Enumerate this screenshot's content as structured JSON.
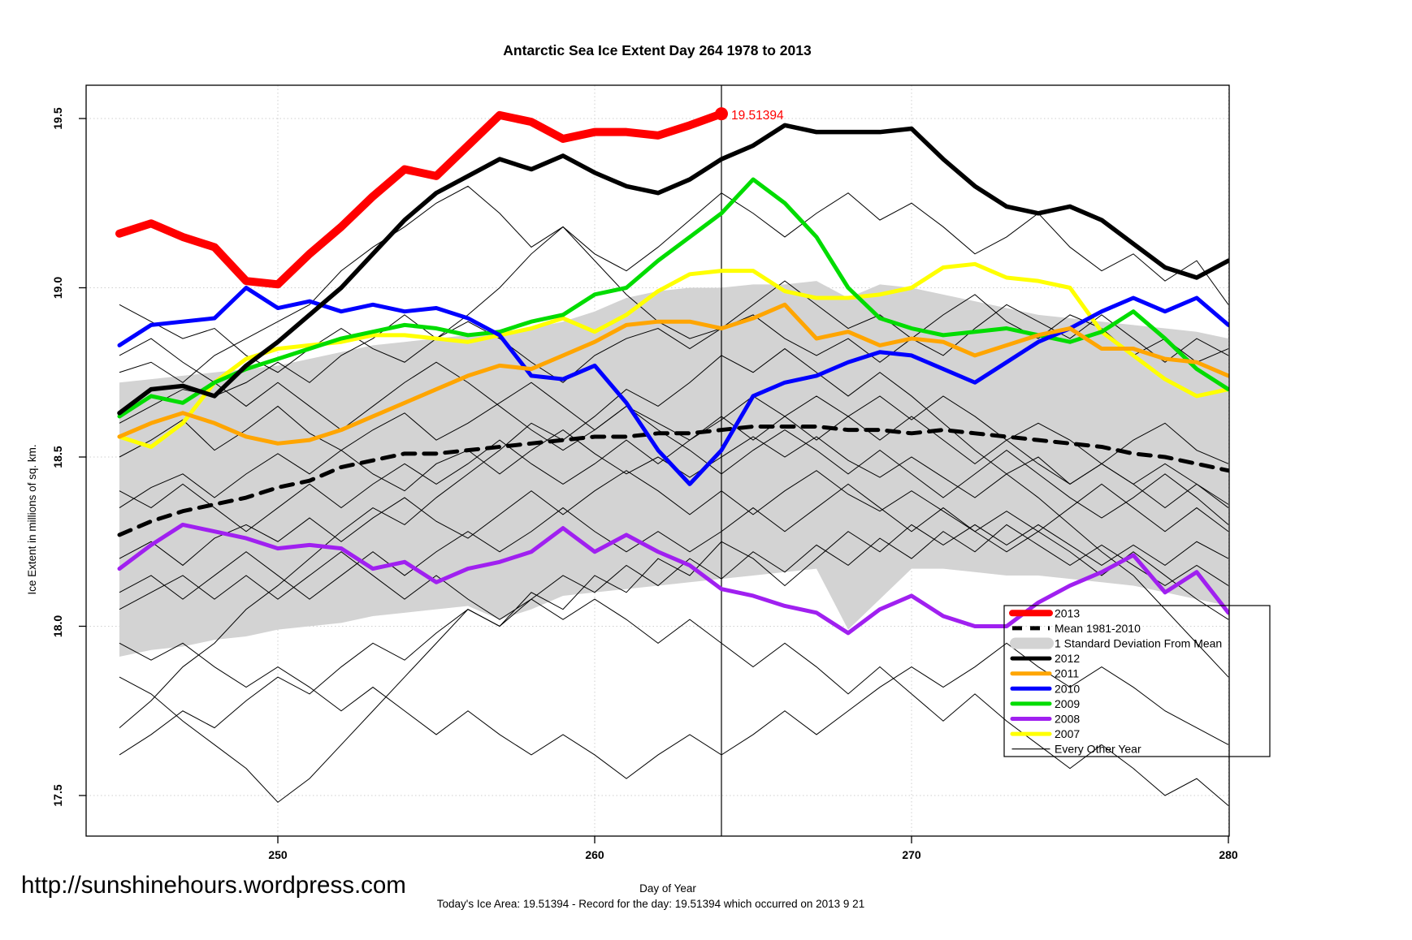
{
  "title": "Antarctic Sea Ice Extent Day 264 1978 to 2013",
  "url_text": "http://sunshinehours.wordpress.com",
  "xlabel": "Day of Year",
  "ylabel": "Ice Extent in millions of sq. km.",
  "caption": "Today's Ice Area: 19.51394  - Record for the day: 19.51394 which occurred on 2013 9 21",
  "annotation": {
    "text": "19.51394",
    "day": 264,
    "value": 19.51394,
    "color": "#FF0000"
  },
  "axes": {
    "x_ticks": [
      250,
      260,
      270,
      280
    ],
    "y_ticks": [
      "19.5",
      "19.0",
      "18.5",
      "18.0",
      "17.5"
    ],
    "x_range": [
      244,
      280.1
    ],
    "y_range": [
      17.38,
      19.62
    ],
    "marker_day": 264,
    "grid": "dotted"
  },
  "legend": [
    {
      "label": "2013",
      "swatch": "thick-line",
      "color": "#FF0000"
    },
    {
      "label": "Mean 1981-2010",
      "swatch": "dashed-line",
      "color": "#000000"
    },
    {
      "label": "1 Standard Deviation From Mean",
      "swatch": "patch",
      "color": "#D3D3D3"
    },
    {
      "label": "2012",
      "swatch": "line",
      "color": "#000000"
    },
    {
      "label": "2011",
      "swatch": "line",
      "color": "#FFA500"
    },
    {
      "label": "2010",
      "swatch": "line",
      "color": "#0000FF"
    },
    {
      "label": "2009",
      "swatch": "line",
      "color": "#00DC00"
    },
    {
      "label": "2008",
      "swatch": "line",
      "color": "#A020F0"
    },
    {
      "label": "2007",
      "swatch": "line",
      "color": "#FFFF00"
    },
    {
      "label": "Every Other Year",
      "swatch": "thin-line",
      "color": "#000000"
    }
  ],
  "chart_data": {
    "type": "line",
    "title": "Antarctic Sea Ice Extent Day 264 1978 to 2013",
    "xlabel": "Day of Year",
    "ylabel": "Ice Extent in millions of sq. km.",
    "x_days_start": 245,
    "days": [
      245,
      246,
      247,
      248,
      249,
      250,
      251,
      252,
      253,
      254,
      255,
      256,
      257,
      258,
      259,
      260,
      261,
      262,
      263,
      264,
      265,
      266,
      267,
      268,
      269,
      270,
      271,
      272,
      273,
      274,
      275,
      276,
      277,
      278,
      279,
      280
    ],
    "band": {
      "name": "1 Standard Deviation From Mean",
      "color": "#D3D3D3",
      "upper": [
        18.72,
        18.73,
        18.74,
        18.75,
        18.76,
        18.77,
        18.79,
        18.81,
        18.83,
        18.84,
        18.85,
        18.86,
        18.87,
        18.88,
        18.9,
        18.93,
        18.97,
        18.99,
        19.0,
        19.0,
        19.01,
        19.01,
        19.02,
        18.97,
        19.01,
        19.0,
        18.98,
        18.96,
        18.94,
        18.92,
        18.91,
        18.9,
        18.89,
        18.88,
        18.87,
        18.85
      ],
      "lower": [
        17.91,
        17.93,
        17.94,
        17.96,
        17.97,
        17.99,
        18.0,
        18.01,
        18.03,
        18.04,
        18.05,
        18.06,
        18.02,
        18.05,
        18.09,
        18.1,
        18.11,
        18.12,
        18.13,
        18.14,
        18.15,
        18.16,
        18.17,
        17.99,
        18.08,
        18.17,
        18.17,
        18.16,
        18.15,
        18.15,
        18.14,
        18.13,
        18.12,
        18.1,
        18.08,
        18.06
      ]
    },
    "series": [
      {
        "name": "Mean 1981-2010",
        "color": "#000000",
        "style": "dashed",
        "width": 5,
        "start_day": 245,
        "values": [
          18.27,
          18.31,
          18.34,
          18.36,
          18.38,
          18.41,
          18.43,
          18.47,
          18.49,
          18.51,
          18.51,
          18.52,
          18.53,
          18.54,
          18.55,
          18.56,
          18.56,
          18.57,
          18.57,
          18.58,
          18.59,
          18.59,
          18.59,
          18.58,
          18.58,
          18.57,
          18.58,
          18.57,
          18.56,
          18.55,
          18.54,
          18.53,
          18.51,
          18.5,
          18.48,
          18.46
        ]
      },
      {
        "name": "2007",
        "color": "#FFFF00",
        "style": "solid",
        "width": 5,
        "start_day": 245,
        "values": [
          18.56,
          18.53,
          18.6,
          18.72,
          18.79,
          18.82,
          18.83,
          18.84,
          18.86,
          18.86,
          18.85,
          18.84,
          18.86,
          18.88,
          18.91,
          18.87,
          18.92,
          18.99,
          19.04,
          19.05,
          19.05,
          18.99,
          18.97,
          18.97,
          18.98,
          19.0,
          19.06,
          19.07,
          19.03,
          19.02,
          19.0,
          18.87,
          18.8,
          18.73,
          18.68,
          18.7
        ]
      },
      {
        "name": "2008",
        "color": "#A020F0",
        "style": "solid",
        "width": 5,
        "start_day": 245,
        "values": [
          18.17,
          18.24,
          18.3,
          18.28,
          18.26,
          18.23,
          18.24,
          18.23,
          18.17,
          18.19,
          18.13,
          18.17,
          18.19,
          18.22,
          18.29,
          18.22,
          18.27,
          18.22,
          18.18,
          18.11,
          18.09,
          18.06,
          18.04,
          17.98,
          18.05,
          18.09,
          18.03,
          18.0,
          18.0,
          18.07,
          18.12,
          18.16,
          18.21,
          18.1,
          18.16,
          18.04
        ]
      },
      {
        "name": "2009",
        "color": "#00DC00",
        "style": "solid",
        "width": 5,
        "start_day": 245,
        "values": [
          18.62,
          18.68,
          18.66,
          18.72,
          18.76,
          18.79,
          18.82,
          18.85,
          18.87,
          18.89,
          18.88,
          18.86,
          18.87,
          18.9,
          18.92,
          18.98,
          19.0,
          19.08,
          19.15,
          19.22,
          19.32,
          19.25,
          19.15,
          19.0,
          18.91,
          18.88,
          18.86,
          18.87,
          18.88,
          18.86,
          18.84,
          18.87,
          18.93,
          18.85,
          18.76,
          18.7
        ]
      },
      {
        "name": "2010",
        "color": "#0000FF",
        "style": "solid",
        "width": 5,
        "start_day": 245,
        "values": [
          18.83,
          18.89,
          18.9,
          18.91,
          19.0,
          18.94,
          18.96,
          18.93,
          18.95,
          18.93,
          18.94,
          18.91,
          18.86,
          18.74,
          18.73,
          18.77,
          18.66,
          18.52,
          18.42,
          18.52,
          18.68,
          18.72,
          18.74,
          18.78,
          18.81,
          18.8,
          18.76,
          18.72,
          18.78,
          18.84,
          18.88,
          18.93,
          18.97,
          18.93,
          18.97,
          18.89
        ]
      },
      {
        "name": "2011",
        "color": "#FFA500",
        "style": "solid",
        "width": 5,
        "start_day": 245,
        "values": [
          18.56,
          18.6,
          18.63,
          18.6,
          18.56,
          18.54,
          18.55,
          18.58,
          18.62,
          18.66,
          18.7,
          18.74,
          18.77,
          18.76,
          18.8,
          18.84,
          18.89,
          18.9,
          18.9,
          18.88,
          18.91,
          18.95,
          18.85,
          18.87,
          18.83,
          18.85,
          18.84,
          18.8,
          18.83,
          18.86,
          18.88,
          18.82,
          18.82,
          18.79,
          18.78,
          18.74
        ]
      },
      {
        "name": "2012",
        "color": "#000000",
        "style": "solid",
        "width": 5.5,
        "start_day": 245,
        "values": [
          18.63,
          18.7,
          18.71,
          18.68,
          18.77,
          18.84,
          18.92,
          19.0,
          19.1,
          19.2,
          19.28,
          19.33,
          19.38,
          19.35,
          19.39,
          19.34,
          19.3,
          19.28,
          19.32,
          19.38,
          19.42,
          19.48,
          19.46,
          19.46,
          19.46,
          19.47,
          19.38,
          19.3,
          19.24,
          19.22,
          19.24,
          19.2,
          19.13,
          19.06,
          19.03,
          19.08
        ]
      },
      {
        "name": "2013",
        "color": "#FF0000",
        "style": "solid",
        "width": 10,
        "start_day": 245,
        "end_dot": true,
        "values": [
          19.16,
          19.19,
          19.15,
          19.12,
          19.02,
          19.01,
          19.1,
          19.18,
          19.27,
          19.35,
          19.33,
          19.42,
          19.51,
          19.49,
          19.44,
          19.46,
          19.46,
          19.45,
          19.48,
          19.514
        ]
      }
    ],
    "background_lines": {
      "name": "Every Other Year",
      "color": "#000000",
      "width": 1,
      "lines": [
        [
          18.75,
          18.78,
          18.72,
          18.8,
          18.85,
          18.9,
          18.95,
          19.05,
          19.12,
          19.18,
          19.25,
          19.3,
          19.22,
          19.12,
          19.18,
          19.08,
          18.98,
          18.9,
          18.85,
          18.88,
          18.95,
          19.02,
          18.95,
          18.88,
          18.92,
          18.85,
          18.8,
          18.88,
          18.95,
          18.9,
          18.85,
          18.92,
          18.85,
          18.78,
          18.85,
          18.8
        ],
        [
          18.6,
          18.65,
          18.7,
          18.68,
          18.72,
          18.78,
          18.72,
          18.8,
          18.85,
          18.92,
          18.85,
          18.92,
          19.0,
          19.1,
          19.18,
          19.1,
          19.05,
          19.12,
          19.2,
          19.28,
          19.22,
          19.15,
          19.22,
          19.28,
          19.2,
          19.25,
          19.18,
          19.1,
          19.15,
          19.22,
          19.12,
          19.05,
          19.1,
          19.02,
          19.08,
          18.95
        ],
        [
          18.95,
          18.9,
          18.85,
          18.88,
          18.8,
          18.75,
          18.82,
          18.88,
          18.82,
          18.78,
          18.85,
          18.9,
          18.85,
          18.78,
          18.72,
          18.8,
          18.85,
          18.88,
          18.82,
          18.88,
          18.92,
          18.85,
          18.8,
          18.85,
          18.78,
          18.85,
          18.92,
          18.98,
          18.9,
          18.85,
          18.92,
          18.88,
          18.8,
          18.85,
          18.78,
          18.82
        ],
        [
          18.5,
          18.55,
          18.61,
          18.52,
          18.58,
          18.65,
          18.57,
          18.52,
          18.58,
          18.63,
          18.55,
          18.6,
          18.66,
          18.72,
          18.65,
          18.58,
          18.65,
          18.6,
          18.55,
          18.61,
          18.68,
          18.62,
          18.55,
          18.62,
          18.68,
          18.61,
          18.68,
          18.62,
          18.55,
          18.6,
          18.55,
          18.48,
          18.55,
          18.6,
          18.52,
          18.48
        ],
        [
          18.35,
          18.41,
          18.45,
          18.38,
          18.45,
          18.51,
          18.45,
          18.52,
          18.45,
          18.4,
          18.48,
          18.52,
          18.45,
          18.52,
          18.58,
          18.51,
          18.45,
          18.5,
          18.44,
          18.5,
          18.56,
          18.5,
          18.56,
          18.49,
          18.44,
          18.5,
          18.44,
          18.38,
          18.45,
          18.5,
          18.42,
          18.48,
          18.42,
          18.35,
          18.42,
          18.36
        ],
        [
          18.2,
          18.25,
          18.18,
          18.26,
          18.3,
          18.25,
          18.32,
          18.25,
          18.32,
          18.38,
          18.31,
          18.26,
          18.33,
          18.4,
          18.33,
          18.4,
          18.46,
          18.4,
          18.33,
          18.4,
          18.33,
          18.4,
          18.46,
          18.39,
          18.34,
          18.4,
          18.34,
          18.28,
          18.34,
          18.28,
          18.35,
          18.42,
          18.35,
          18.28,
          18.35,
          18.28
        ],
        [
          17.85,
          17.8,
          17.72,
          17.65,
          17.58,
          17.48,
          17.55,
          17.65,
          17.75,
          17.85,
          17.95,
          18.05,
          18.0,
          18.1,
          18.05,
          18.15,
          18.1,
          18.2,
          18.15,
          18.25,
          18.2,
          18.12,
          18.2,
          18.28,
          18.22,
          18.3,
          18.24,
          18.3,
          18.24,
          18.3,
          18.24,
          18.18,
          18.24,
          18.18,
          18.25,
          18.2
        ],
        [
          17.62,
          17.68,
          17.75,
          17.7,
          17.78,
          17.85,
          17.8,
          17.88,
          17.95,
          17.9,
          17.98,
          18.05,
          18.0,
          18.08,
          18.15,
          18.1,
          18.18,
          18.12,
          18.2,
          18.14,
          18.22,
          18.16,
          18.24,
          18.18,
          18.26,
          18.2,
          18.28,
          18.22,
          18.3,
          18.24,
          18.18,
          18.24,
          18.18,
          18.12,
          18.18,
          18.12
        ],
        [
          18.05,
          18.1,
          18.15,
          18.08,
          18.15,
          18.08,
          18.15,
          18.22,
          18.15,
          18.08,
          18.15,
          18.08,
          18.02,
          18.08,
          18.02,
          18.08,
          18.02,
          17.95,
          18.02,
          17.95,
          17.88,
          17.95,
          17.88,
          17.8,
          17.88,
          17.8,
          17.72,
          17.8,
          17.72,
          17.65,
          17.58,
          17.65,
          17.58,
          17.5,
          17.55,
          17.47
        ],
        [
          17.95,
          17.9,
          17.95,
          17.88,
          17.82,
          17.88,
          17.82,
          17.75,
          17.82,
          17.75,
          17.68,
          17.75,
          17.68,
          17.62,
          17.68,
          17.62,
          17.55,
          17.62,
          17.68,
          17.62,
          17.68,
          17.75,
          17.68,
          17.75,
          17.82,
          17.88,
          17.82,
          17.88,
          17.95,
          17.88,
          17.82,
          17.88,
          17.82,
          17.75,
          17.7,
          17.65
        ],
        [
          18.4,
          18.35,
          18.42,
          18.35,
          18.28,
          18.35,
          18.42,
          18.35,
          18.42,
          18.48,
          18.42,
          18.48,
          18.55,
          18.48,
          18.42,
          18.48,
          18.55,
          18.48,
          18.55,
          18.62,
          18.55,
          18.62,
          18.68,
          18.62,
          18.55,
          18.62,
          18.55,
          18.48,
          18.55,
          18.48,
          18.42,
          18.48,
          18.42,
          18.48,
          18.42,
          18.35
        ],
        [
          18.1,
          18.15,
          18.08,
          18.15,
          18.22,
          18.15,
          18.08,
          18.15,
          18.22,
          18.15,
          18.22,
          18.28,
          18.22,
          18.28,
          18.35,
          18.28,
          18.22,
          18.28,
          18.22,
          18.28,
          18.35,
          18.28,
          18.35,
          18.42,
          18.35,
          18.28,
          18.35,
          18.28,
          18.22,
          18.28,
          18.22,
          18.15,
          18.22,
          18.15,
          18.08,
          18.02
        ],
        [
          17.7,
          17.78,
          17.88,
          17.95,
          18.05,
          18.12,
          18.2,
          18.28,
          18.35,
          18.3,
          18.38,
          18.45,
          18.52,
          18.6,
          18.55,
          18.62,
          18.7,
          18.65,
          18.72,
          18.8,
          18.75,
          18.82,
          18.75,
          18.68,
          18.75,
          18.68,
          18.6,
          18.52,
          18.45,
          18.38,
          18.3,
          18.22,
          18.15,
          18.05,
          17.95,
          17.85
        ],
        [
          18.8,
          18.85,
          18.78,
          18.72,
          18.65,
          18.72,
          18.65,
          18.58,
          18.65,
          18.72,
          18.78,
          18.72,
          18.65,
          18.58,
          18.52,
          18.58,
          18.65,
          18.58,
          18.52,
          18.45,
          18.52,
          18.58,
          18.52,
          18.45,
          18.52,
          18.45,
          18.38,
          18.45,
          18.52,
          18.45,
          18.38,
          18.32,
          18.38,
          18.45,
          18.38,
          18.3
        ]
      ]
    }
  }
}
